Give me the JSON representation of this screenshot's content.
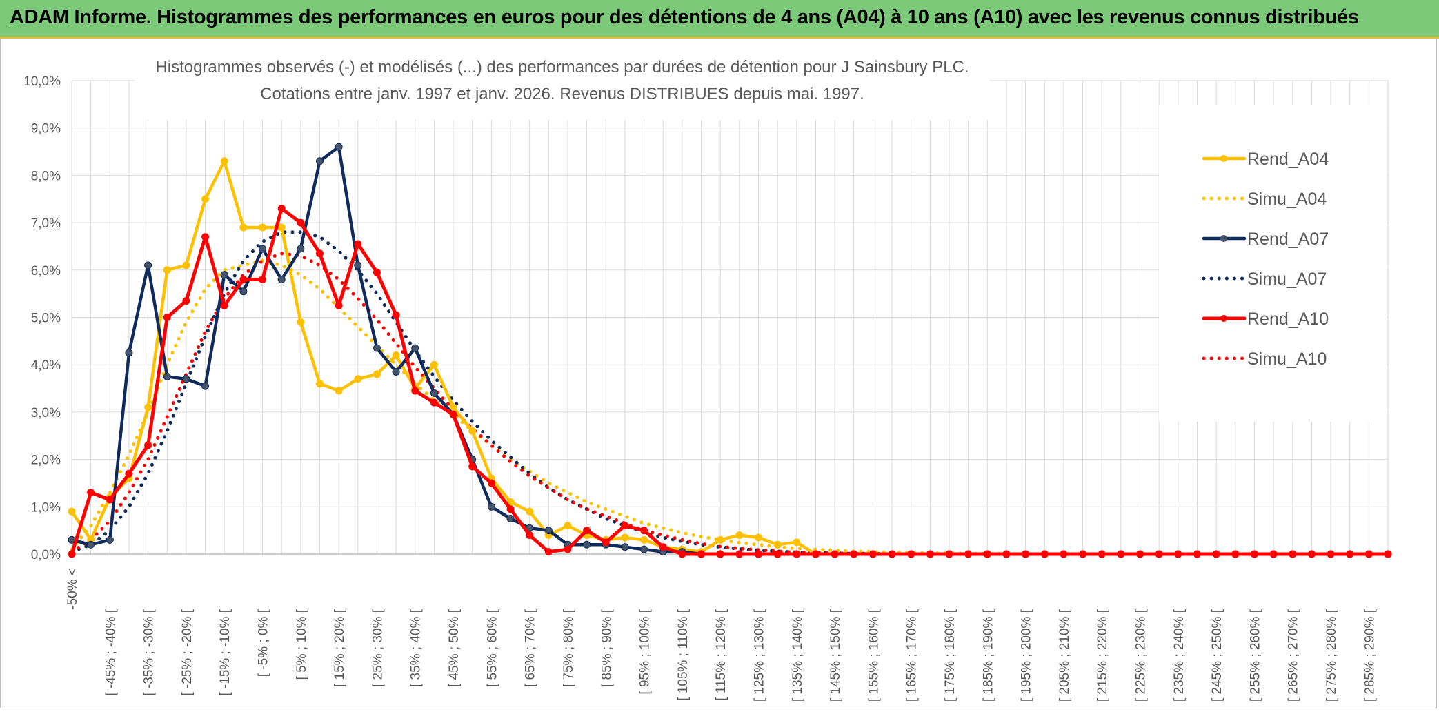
{
  "banner_title": "ADAM Informe. Histogrammes des performances en euros pour des détentions de 4 ans (A04) à 10 ans (A10) avec les revenus connus distribués",
  "colors": {
    "banner_bg": "#7dc97a",
    "A04": "#ffc000",
    "A07": "#0f2a5c",
    "A10": "#ff0000",
    "A07_marker": "#44546a",
    "grid": "#d9d9d9",
    "text": "#595959"
  },
  "chart_data": {
    "type": "line",
    "title": "Histogrammes observés (-) et modélisés (...) des performances par durées de détention pour J Sainsbury PLC.",
    "subtitle": "Cotations entre janv. 1997 et janv. 2026. Revenus DISTRIBUES depuis mai. 1997.",
    "xlabel": "",
    "ylabel": "",
    "ylim": [
      0,
      10
    ],
    "y_ticks": [
      "0,0%",
      "1,0%",
      "2,0%",
      "3,0%",
      "4,0%",
      "5,0%",
      "6,0%",
      "7,0%",
      "8,0%",
      "9,0%",
      "10,0%"
    ],
    "x_tick_labels": [
      "-50% <",
      "[ -45% ; -40% [",
      "[ -35% ; -30% [",
      "[ -25% ; -20% [",
      "[ -15% ; -10% [",
      "[ -5% ; 0% [",
      "[ 5% ; 10% [",
      "[ 15% ; 20% [",
      "[ 25% ; 30% [",
      "[ 35% ; 40% [",
      "[ 45% ; 50% [",
      "[ 55% ; 60% [",
      "[ 65% ; 70% [",
      "[ 75% ; 80% [",
      "[ 85% ; 90% [",
      "[ 95% ; 100% [",
      "[ 105% ; 110% [",
      "[ 115% ; 120% [",
      "[ 125% ; 130% [",
      "[ 135% ; 140% [",
      "[ 145% ; 150% [",
      "[ 155% ; 160% [",
      "[ 165% ; 170% [",
      "[ 175% ; 180% [",
      "[ 185% ; 190% [",
      "[ 195% ; 200% [",
      "[ 205% ; 210% [",
      "[ 215% ; 220% [",
      "[ 225% ; 230% [",
      "[ 235% ; 240% [",
      "[ 245% ; 250% [",
      "[ 255% ; 260% [",
      "[ 265% ; 270% [",
      "[ 275% ; 280% [",
      "[ 285% ; 290% ["
    ],
    "grid": true,
    "legend_position": "right",
    "series": [
      {
        "name": "Rend_A04",
        "style": "solid",
        "values": [
          0.9,
          0.3,
          1.2,
          1.6,
          3.1,
          6.0,
          6.1,
          7.5,
          8.3,
          6.9,
          6.9,
          6.9,
          4.9,
          3.6,
          3.45,
          3.7,
          3.8,
          4.2,
          3.5,
          4.0,
          3.1,
          2.6,
          1.6,
          1.1,
          0.9,
          0.4,
          0.6,
          0.4,
          0.3,
          0.35,
          0.3,
          0.15,
          0.1,
          0.05,
          0.3,
          0.4,
          0.35,
          0.2,
          0.25,
          0,
          0,
          0,
          0,
          0,
          0,
          0,
          0,
          0,
          0,
          0,
          0,
          0,
          0,
          0,
          0,
          0,
          0,
          0,
          0,
          0,
          0,
          0,
          0,
          0,
          0,
          0,
          0,
          0,
          0,
          0
        ]
      },
      {
        "name": "Simu_A04",
        "style": "dotted",
        "values": [
          0.1,
          0.6,
          1.3,
          2.1,
          3.0,
          4.0,
          4.9,
          5.6,
          6.0,
          6.1,
          6.2,
          6.1,
          5.9,
          5.6,
          5.2,
          4.8,
          4.4,
          4.0,
          3.6,
          3.25,
          2.95,
          2.6,
          2.3,
          2.0,
          1.75,
          1.5,
          1.3,
          1.1,
          0.95,
          0.8,
          0.65,
          0.55,
          0.45,
          0.37,
          0.3,
          0.24,
          0.2,
          0.15,
          0.12,
          0.1,
          0.08,
          0.06,
          0.05,
          0.04,
          0.03,
          0.02,
          0.02,
          0.01,
          0.01,
          0.01,
          0,
          0,
          0,
          0,
          0,
          0,
          0,
          0,
          0,
          0,
          0,
          0,
          0,
          0,
          0,
          0,
          0,
          0,
          0,
          0
        ]
      },
      {
        "name": "Rend_A07",
        "style": "solid",
        "values": [
          0.3,
          0.2,
          0.3,
          4.25,
          6.1,
          3.75,
          3.7,
          3.55,
          5.9,
          5.55,
          6.45,
          5.8,
          6.45,
          8.3,
          8.6,
          6.1,
          4.35,
          3.85,
          4.35,
          3.4,
          2.95,
          2.0,
          1.0,
          0.75,
          0.55,
          0.5,
          0.2,
          0.2,
          0.2,
          0.15,
          0.1,
          0.05,
          0.05,
          0,
          0,
          0,
          0,
          0,
          0,
          0,
          0,
          0,
          0,
          0,
          0,
          0,
          0,
          0,
          0,
          0,
          0,
          0,
          0,
          0,
          0,
          0,
          0,
          0,
          0,
          0,
          0,
          0,
          0,
          0,
          0,
          0,
          0,
          0,
          0,
          0
        ]
      },
      {
        "name": "Simu_A07",
        "style": "dotted",
        "values": [
          0.05,
          0.2,
          0.5,
          1.0,
          1.7,
          2.6,
          3.6,
          4.6,
          5.5,
          6.2,
          6.6,
          6.8,
          6.8,
          6.7,
          6.4,
          6.0,
          5.5,
          4.9,
          4.3,
          3.75,
          3.25,
          2.8,
          2.4,
          2.05,
          1.7,
          1.4,
          1.15,
          0.95,
          0.75,
          0.6,
          0.45,
          0.35,
          0.27,
          0.2,
          0.15,
          0.11,
          0.08,
          0.06,
          0.04,
          0.03,
          0.02,
          0.01,
          0.01,
          0,
          0,
          0,
          0,
          0,
          0,
          0,
          0,
          0,
          0,
          0,
          0,
          0,
          0,
          0,
          0,
          0,
          0,
          0,
          0,
          0,
          0,
          0,
          0,
          0,
          0,
          0
        ]
      },
      {
        "name": "Rend_A10",
        "style": "solid",
        "values": [
          0.0,
          1.3,
          1.15,
          1.7,
          2.3,
          5.0,
          5.35,
          6.7,
          5.25,
          5.8,
          5.8,
          7.3,
          7.0,
          6.35,
          5.25,
          6.55,
          5.95,
          5.05,
          3.45,
          3.2,
          2.95,
          1.85,
          1.5,
          0.95,
          0.4,
          0.05,
          0.1,
          0.5,
          0.25,
          0.6,
          0.5,
          0.15,
          0,
          0,
          0,
          0,
          0,
          0,
          0,
          0,
          0,
          0,
          0,
          0,
          0,
          0,
          0,
          0,
          0,
          0,
          0,
          0,
          0,
          0,
          0,
          0,
          0,
          0,
          0,
          0,
          0,
          0,
          0,
          0,
          0,
          0,
          0,
          0,
          0,
          0
        ]
      },
      {
        "name": "Simu_A10",
        "style": "dotted",
        "values": [
          0.05,
          0.3,
          0.7,
          1.3,
          2.0,
          2.9,
          3.8,
          4.7,
          5.4,
          5.9,
          6.2,
          6.35,
          6.3,
          6.1,
          5.8,
          5.4,
          4.95,
          4.45,
          3.95,
          3.5,
          3.05,
          2.65,
          2.3,
          1.95,
          1.65,
          1.4,
          1.15,
          0.95,
          0.8,
          0.65,
          0.5,
          0.4,
          0.3,
          0.22,
          0.16,
          0.12,
          0.09,
          0.06,
          0.04,
          0.03,
          0.02,
          0.01,
          0,
          0,
          0,
          0,
          0,
          0,
          0,
          0,
          0,
          0,
          0,
          0,
          0,
          0,
          0,
          0,
          0,
          0,
          0,
          0,
          0,
          0,
          0,
          0,
          0,
          0,
          0,
          0
        ]
      }
    ]
  }
}
